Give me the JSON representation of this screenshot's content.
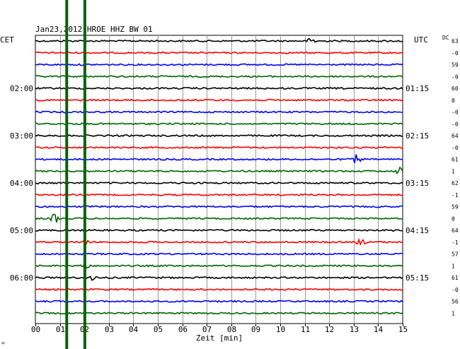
{
  "chart_data": {
    "type": "line",
    "title": "Jan23,2012    HROE HHZ BW 01",
    "left_tz": "CET",
    "right_tz": "UTC",
    "dc_label": "DC",
    "xlabel": "Zeit [min]",
    "xlim": [
      0,
      15
    ],
    "x_ticks": [
      "00",
      "01",
      "02",
      "03",
      "04",
      "05",
      "06",
      "07",
      "08",
      "09",
      "10",
      "11",
      "12",
      "13",
      "14",
      "15"
    ],
    "left_hour_labels": [
      {
        "trace": 4,
        "text": "02:00"
      },
      {
        "trace": 8,
        "text": "03:00"
      },
      {
        "trace": 12,
        "text": "04:00"
      },
      {
        "trace": 16,
        "text": "05:00"
      },
      {
        "trace": 20,
        "text": "06:00"
      }
    ],
    "right_hour_labels": [
      {
        "trace": 4,
        "text": "01:15"
      },
      {
        "trace": 8,
        "text": "02:15"
      },
      {
        "trace": 12,
        "text": "03:15"
      },
      {
        "trace": 16,
        "text": "04:15"
      },
      {
        "trace": 20,
        "text": "05:15"
      }
    ],
    "dc_values": [
      "63",
      "-0",
      "59",
      "-0",
      "60",
      "0",
      "-0",
      "-0",
      "64",
      "-0",
      "61",
      "1",
      "62",
      "-1",
      "59",
      "0",
      "64",
      "-1",
      "57",
      "1",
      "61",
      "-0",
      "56",
      "1"
    ],
    "trace_colors": [
      "#000000",
      "#ff0000",
      "#0000ff",
      "#006400"
    ],
    "trace_count": 24,
    "marker_color": "#006400",
    "marker_lines_min": [
      1.28,
      2.02
    ],
    "events": [
      {
        "trace": 0,
        "minute": 11.3,
        "amplitude": 0.9
      },
      {
        "trace": 10,
        "minute": 13.1,
        "amplitude": 1.0
      },
      {
        "trace": 11,
        "minute": 14.9,
        "amplitude": 0.8
      },
      {
        "trace": 15,
        "minute": 0.8,
        "amplitude": 1.1
      },
      {
        "trace": 17,
        "minute": 13.3,
        "amplitude": 0.7
      },
      {
        "trace": 17,
        "minute": 2.0,
        "amplitude": 0.6
      },
      {
        "trace": 19,
        "minute": 2.0,
        "amplitude": 1.2
      },
      {
        "trace": 20,
        "minute": 2.3,
        "amplitude": 0.8
      }
    ],
    "grid": true,
    "footer_mark": "="
  }
}
